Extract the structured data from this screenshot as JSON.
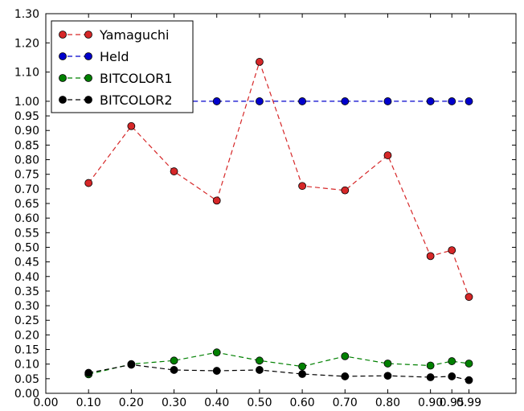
{
  "chart_data": {
    "type": "line",
    "title": "",
    "xlabel": "",
    "ylabel": "",
    "xlim": [
      0.0,
      0.99
    ],
    "ylim": [
      0.0,
      1.3
    ],
    "x_ticks": [
      0.0,
      0.1,
      0.2,
      0.3,
      0.4,
      0.5,
      0.6,
      0.7,
      0.8,
      0.9,
      0.95,
      0.99
    ],
    "x_tick_labels": [
      "0.00",
      "0.10",
      "0.20",
      "0.30",
      "0.40",
      "0.50",
      "0.60",
      "0.70",
      "0.80",
      "0.90",
      "0.95",
      "0.99"
    ],
    "y_ticks": [
      0.0,
      0.05,
      0.1,
      0.15,
      0.2,
      0.25,
      0.3,
      0.35,
      0.4,
      0.45,
      0.5,
      0.55,
      0.6,
      0.65,
      0.7,
      0.75,
      0.8,
      0.85,
      0.9,
      0.95,
      1.0,
      1.1,
      1.2,
      1.3
    ],
    "y_tick_labels": [
      "0.00",
      "0.05",
      "0.10",
      "0.15",
      "0.20",
      "0.25",
      "0.30",
      "0.35",
      "0.40",
      "0.45",
      "0.50",
      "0.55",
      "0.60",
      "0.65",
      "0.70",
      "0.75",
      "0.80",
      "0.85",
      "0.90",
      "0.95",
      "1.00",
      "1.10",
      "1.20",
      "1.30"
    ],
    "grid": false,
    "legend_position": "top-left",
    "x": [
      0.1,
      0.2,
      0.3,
      0.4,
      0.5,
      0.6,
      0.7,
      0.8,
      0.9,
      0.95,
      0.99
    ],
    "series": [
      {
        "name": "Yamaguchi",
        "color": "#d62728",
        "values": [
          0.72,
          0.915,
          0.76,
          0.66,
          1.135,
          0.71,
          0.695,
          0.815,
          0.47,
          0.49,
          0.33
        ]
      },
      {
        "name": "Held",
        "color": "#0000cc",
        "values": [
          1.0,
          1.0,
          1.0,
          1.0,
          1.0,
          1.0,
          1.0,
          1.0,
          1.0,
          1.0,
          1.0
        ]
      },
      {
        "name": "BITCOLOR1",
        "color": "#008000",
        "values": [
          0.065,
          0.1,
          0.112,
          0.14,
          0.112,
          0.092,
          0.127,
          0.102,
          0.095,
          0.11,
          0.102
        ]
      },
      {
        "name": "BITCOLOR2",
        "color": "#000000",
        "values": [
          0.07,
          0.098,
          0.08,
          0.077,
          0.08,
          0.066,
          0.058,
          0.06,
          0.055,
          0.058,
          0.045
        ]
      }
    ]
  }
}
